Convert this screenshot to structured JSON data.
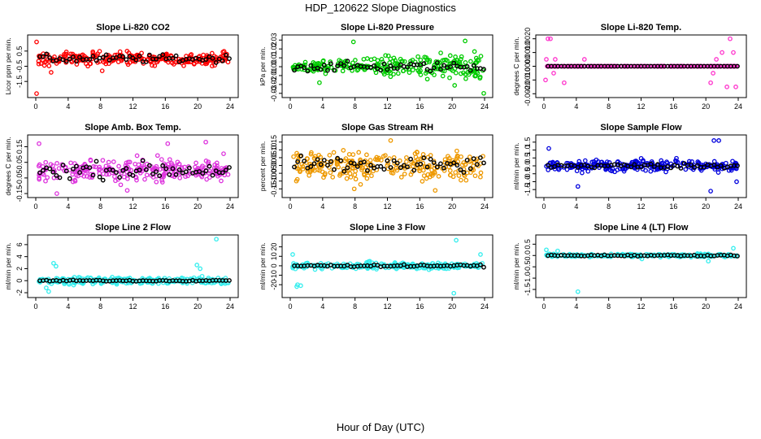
{
  "suptitle": "HDP_120622  Slope Diagnostics",
  "xlabel": "Hour of Day (UTC)",
  "chart_data": [
    {
      "type": "scatter",
      "title": "Slope Li-820 CO2",
      "ylabel": "Licor ppm per min.",
      "xlim": [
        0,
        24
      ],
      "xticks": [
        0,
        4,
        8,
        12,
        16,
        20,
        24
      ],
      "ylim": [
        -2.4,
        1.4
      ],
      "yticks": [
        -1.5,
        -0.5,
        0.5
      ],
      "ytick_labels": [
        "-1.5",
        "-0.5",
        "0.5"
      ],
      "color": "#ff0000",
      "spread": 0.35,
      "mean_spread": 0.25,
      "outliers": [
        [
          0.1,
          -2.3
        ],
        [
          0.1,
          1.1
        ],
        [
          1.9,
          -0.9
        ],
        [
          8.2,
          -0.8
        ]
      ]
    },
    {
      "type": "scatter",
      "title": "Slope Li-820 Pressure",
      "ylabel": "kPa per min.",
      "xlim": [
        0,
        24
      ],
      "xticks": [
        0,
        4,
        8,
        12,
        16,
        20,
        24
      ],
      "ylim": [
        -0.032,
        0.033
      ],
      "yticks": [
        -0.03,
        -0.02,
        -0.01,
        0,
        0.01,
        0.02,
        0.03
      ],
      "ytick_labels": [
        "-0.03",
        "-0.02",
        "-0.01",
        "0.00",
        "0.01",
        "0.02",
        "0.03"
      ],
      "color": "#00cc00",
      "spread": 0.008,
      "mean_spread": 0.005,
      "grow": true,
      "outliers": [
        [
          3.6,
          -0.018
        ],
        [
          7.8,
          0.028
        ],
        [
          20.3,
          -0.021
        ],
        [
          21.6,
          0.029
        ],
        [
          23.9,
          -0.03
        ]
      ]
    },
    {
      "type": "scatter",
      "title": "Slope Li-820 Temp.",
      "ylabel": "degrees C per min.",
      "xlim": [
        0,
        24
      ],
      "xticks": [
        0,
        4,
        8,
        12,
        16,
        20,
        24
      ],
      "ylim": [
        -0.0021,
        0.0021
      ],
      "yticks": [
        -0.002,
        -0.001,
        0,
        0.001,
        0.002
      ],
      "ytick_labels": [
        "-0.0020",
        "-0.0010",
        "0.0000",
        "0.0010",
        "0.0020"
      ],
      "color": "#ff33cc",
      "spread": 0.0,
      "mean_spread": 0.0,
      "outliers": [
        [
          0.2,
          -0.001
        ],
        [
          0.3,
          0.0005
        ],
        [
          0.5,
          0.002
        ],
        [
          0.8,
          0.002
        ],
        [
          1.2,
          -0.0005
        ],
        [
          1.4,
          0.0005
        ],
        [
          2.5,
          -0.0012
        ],
        [
          5.0,
          0.0005
        ],
        [
          20.6,
          -0.0012
        ],
        [
          20.9,
          -0.0005
        ],
        [
          21.3,
          0.0005
        ],
        [
          22.0,
          0.001
        ],
        [
          22.6,
          -0.0015
        ],
        [
          23.0,
          0.002
        ],
        [
          23.4,
          0.001
        ],
        [
          23.7,
          -0.0015
        ]
      ]
    },
    {
      "type": "scatter",
      "title": "Slope Amb. Box Temp.",
      "ylabel": "degrees C per min.",
      "xlim": [
        0,
        24
      ],
      "xticks": [
        0,
        4,
        8,
        12,
        16,
        20,
        24
      ],
      "ylim": [
        -0.16,
        0.21
      ],
      "yticks": [
        -0.15,
        -0.05,
        0.05,
        0.15
      ],
      "ytick_labels": [
        "-0.15",
        "-0.05",
        "0.05",
        "0.15"
      ],
      "color": "#dd33dd",
      "spread": 0.06,
      "mean_spread": 0.05,
      "outliers": [
        [
          0.4,
          0.17
        ],
        [
          2.6,
          -0.15
        ],
        [
          11.3,
          -0.13
        ],
        [
          16.3,
          0.17
        ],
        [
          21.0,
          0.18
        ]
      ]
    },
    {
      "type": "scatter",
      "title": "Slope Gas Stream RH",
      "ylabel": "percent per min.",
      "xlim": [
        0,
        24
      ],
      "xticks": [
        0,
        4,
        8,
        12,
        16,
        20,
        24
      ],
      "ylim": [
        -0.19,
        0.18
      ],
      "yticks": [
        -0.15,
        -0.1,
        -0.05,
        0,
        0.05,
        0.1,
        0.15
      ],
      "ytick_labels": [
        "-0.15",
        "-0.10",
        "-0.05",
        "0.00",
        "0.05",
        "0.10",
        "0.15"
      ],
      "color": "#ee9900",
      "spread": 0.07,
      "mean_spread": 0.05,
      "outliers": [
        [
          7.9,
          -0.15
        ],
        [
          12.4,
          0.16
        ],
        [
          17.9,
          -0.16
        ]
      ]
    },
    {
      "type": "scatter",
      "title": "Slope Sample Flow",
      "ylabel": "ml/min per min.",
      "xlim": [
        0,
        24
      ],
      "xticks": [
        0,
        4,
        8,
        12,
        16,
        20,
        24
      ],
      "ylim": [
        -1.85,
        1.8
      ],
      "yticks": [
        -1.5,
        -1,
        -0.5,
        0,
        0.5,
        1,
        1.5
      ],
      "ytick_labels": [
        "-1.5",
        "-1.0",
        "-0.5",
        "0.0",
        "0.5",
        "1.0",
        "1.5"
      ],
      "color": "#0000dd",
      "spread": 0.28,
      "mean_spread": 0.15,
      "outliers": [
        [
          0.6,
          1.1
        ],
        [
          4.2,
          -1.3
        ],
        [
          20.6,
          -1.6
        ],
        [
          21.0,
          1.6
        ],
        [
          21.6,
          1.6
        ],
        [
          23.8,
          -1.0
        ]
      ]
    },
    {
      "type": "scatter",
      "title": "Slope Line 2 Flow",
      "ylabel": "ml/min per min.",
      "xlim": [
        0,
        24
      ],
      "xticks": [
        0,
        4,
        8,
        12,
        16,
        20,
        24
      ],
      "ylim": [
        -2.4,
        7.2
      ],
      "yticks": [
        -2,
        0,
        2,
        4,
        6
      ],
      "ytick_labels": [
        "-2",
        "0",
        "2",
        "4",
        "6"
      ],
      "color": "#33eeee",
      "spread": 0.45,
      "mean_spread": 0.1,
      "outliers": [
        [
          1.3,
          -1.2
        ],
        [
          1.6,
          -1.8
        ],
        [
          2.2,
          2.9
        ],
        [
          2.5,
          2.4
        ],
        [
          19.9,
          2.6
        ],
        [
          20.3,
          2.0
        ],
        [
          22.3,
          6.9
        ]
      ]
    },
    {
      "type": "scatter",
      "title": "Slope Line 3 Flow",
      "ylabel": "ml/min per min.",
      "xlim": [
        0,
        24
      ],
      "xticks": [
        0,
        4,
        8,
        12,
        16,
        20,
        24
      ],
      "ylim": [
        -31,
        30
      ],
      "yticks": [
        -20,
        -10,
        0,
        10,
        20
      ],
      "ytick_labels": [
        "-20",
        "-10",
        "0",
        "10",
        "20"
      ],
      "color": "#33eeee",
      "spread": 2.8,
      "mean_spread": 1.0,
      "outliers": [
        [
          0.3,
          12
        ],
        [
          0.8,
          -22
        ],
        [
          1.3,
          -21
        ],
        [
          0.9,
          -20
        ],
        [
          20.2,
          -29
        ],
        [
          20.5,
          27
        ],
        [
          23.5,
          12
        ]
      ]
    },
    {
      "type": "scatter",
      "title": "Slope Line 4 (LT) Flow",
      "ylabel": "ml/min per min.",
      "xlim": [
        0,
        24
      ],
      "xticks": [
        0,
        4,
        8,
        12,
        16,
        20,
        24
      ],
      "ylim": [
        -1.75,
        0.8
      ],
      "yticks": [
        -1.5,
        -1,
        -0.5,
        0,
        0.5
      ],
      "ytick_labels": [
        "-1.5",
        "-1.0",
        "-0.5",
        "0.0",
        "0.5"
      ],
      "color": "#33eeee",
      "spread": 0.05,
      "mean_spread": 0.03,
      "outliers": [
        [
          0.3,
          0.25
        ],
        [
          1.7,
          0.2
        ],
        [
          4.2,
          -1.6
        ],
        [
          12.1,
          -0.15
        ],
        [
          20.3,
          -0.25
        ],
        [
          23.4,
          0.32
        ]
      ]
    }
  ]
}
